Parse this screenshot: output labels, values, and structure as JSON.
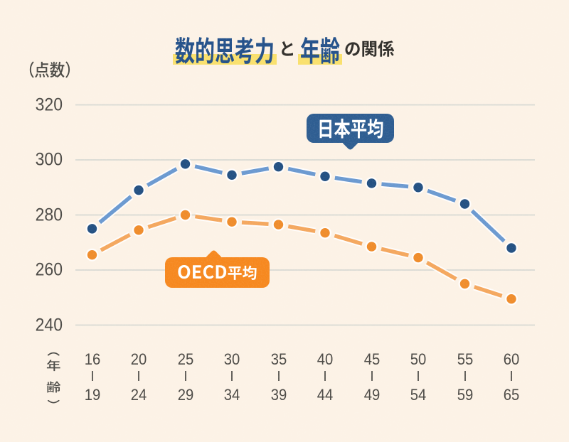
{
  "card": {
    "background": "#fcf2e6"
  },
  "title": {
    "keyword1": "数的思考力",
    "connector": "と",
    "keyword2": "年齢",
    "suffix": "の関係",
    "keyword_color": "#24518a",
    "plain_color": "#312f2b",
    "highlight_color": "#f9e06c"
  },
  "y_axis": {
    "unit_label": "（点数）",
    "tick_labels": [
      "320",
      "300",
      "280",
      "260",
      "240"
    ]
  },
  "x_axis": {
    "unit_label": "（年齢）",
    "tick_groups": [
      [
        "16",
        "19"
      ],
      [
        "20",
        "24"
      ],
      [
        "25",
        "29"
      ],
      [
        "30",
        "34"
      ],
      [
        "35",
        "39"
      ],
      [
        "40",
        "44"
      ],
      [
        "45",
        "49"
      ],
      [
        "50",
        "54"
      ],
      [
        "55",
        "59"
      ],
      [
        "60",
        "65"
      ]
    ]
  },
  "callouts": {
    "japan": {
      "label": "日本平均",
      "bg": "#2e5d91",
      "text_color": "#ffffff"
    },
    "oecd": {
      "label": "OECD平均",
      "bg": "#f6881f",
      "text_color": "#ffffff"
    }
  },
  "chart_data": {
    "type": "line",
    "title": "数的思考力と年齢の関係",
    "xlabel": "年齢",
    "ylabel": "点数",
    "categories": [
      "16-19",
      "20-24",
      "25-29",
      "30-34",
      "35-39",
      "40-44",
      "45-49",
      "50-54",
      "55-59",
      "60-65"
    ],
    "series": [
      {
        "name": "日本平均",
        "line_color": "#6b99d0",
        "point_color": "#235082",
        "values": [
          275,
          289,
          298.5,
          294.5,
          297.5,
          294,
          291.5,
          290,
          284,
          268
        ]
      },
      {
        "name": "OECD平均",
        "line_color": "#f4a75e",
        "point_color": "#ef8c2b",
        "values": [
          265.5,
          274.5,
          280,
          277.5,
          276.5,
          273.5,
          268.5,
          264.5,
          255,
          249.5
        ]
      }
    ],
    "ylim": [
      240,
      320
    ],
    "y_tick_step": 20,
    "grid": "horizontal-only",
    "legend_position": "callouts-on-plot"
  }
}
